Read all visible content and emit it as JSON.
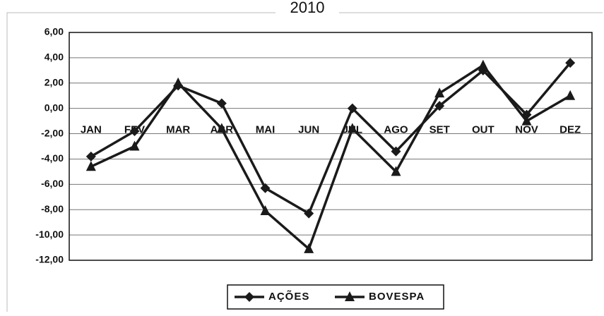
{
  "chart_data": {
    "type": "line",
    "title": "2010",
    "categories": [
      "JAN",
      "FEV",
      "MAR",
      "ABR",
      "MAI",
      "JUN",
      "JUL",
      "AGO",
      "SET",
      "OUT",
      "NOV",
      "DEZ"
    ],
    "series": [
      {
        "name": "AÇÕES",
        "color": "#1a1a1a",
        "marker": "diamond",
        "values": [
          -3.8,
          -1.8,
          1.8,
          0.4,
          -6.3,
          -8.3,
          0.0,
          -3.4,
          0.2,
          3.0,
          -0.5,
          3.6
        ]
      },
      {
        "name": "BOVESPA",
        "color": "#1a1a1a",
        "marker": "triangle",
        "values": [
          -4.6,
          -3.0,
          2.0,
          -1.6,
          -8.1,
          -11.1,
          -1.6,
          -5.0,
          1.2,
          3.4,
          -1.0,
          1.0
        ]
      }
    ],
    "ylim": [
      -12,
      6
    ],
    "yticks": [
      {
        "value": -12,
        "label": "-12,00"
      },
      {
        "value": -10,
        "label": "-10,00"
      },
      {
        "value": -8,
        "label": "-8,00"
      },
      {
        "value": -6,
        "label": "-6,00"
      },
      {
        "value": -4,
        "label": "-4,00"
      },
      {
        "value": -2,
        "label": "-2,00"
      },
      {
        "value": 0,
        "label": "0,00"
      },
      {
        "value": 2,
        "label": "2,00"
      },
      {
        "value": 4,
        "label": "4,00"
      },
      {
        "value": 6,
        "label": "6,00"
      }
    ],
    "grid": true,
    "legend": "bottom"
  }
}
